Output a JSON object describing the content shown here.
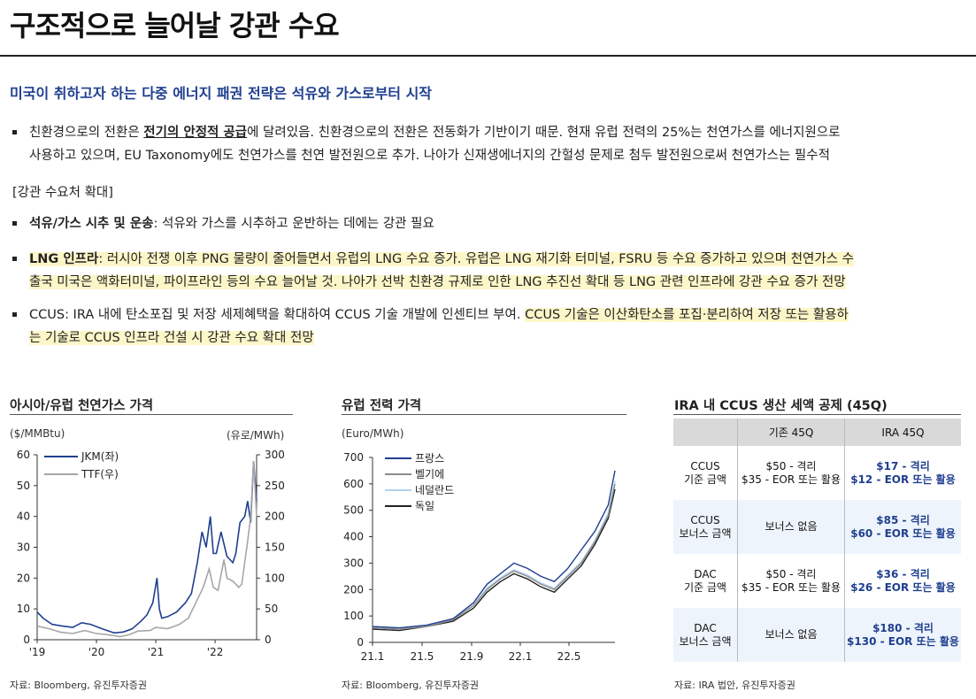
{
  "title": "구조적으로 늘어날 강관 수요",
  "subtitle": "미국이 취하고자 하는 다중 에너지 패권 전략은 석유와 가스로부터 시작",
  "para1": {
    "a": "친환경으로의 전환은 ",
    "b": "전기의 안정적 공급",
    "c": "에 달려있음. 친환경으로의 전환은 전동화가 기반이기 때문. 현재 유럽 전력의 25%는 천연가스를 에너지원으로",
    "d": "사용하고 있으며, EU Taxonomy에도 천연가스를 천연 발전원으로 추가. 나아가 신재생에너지의 간헐성 문제로 첨두 발전원으로써 천연가스는 필수적"
  },
  "section": "[강관 수요처 확대]",
  "b1": {
    "head": "석유/가스 시추 및 운송",
    "body": ": 석유와 가스를 시추하고 운반하는 데에는 강관 필요"
  },
  "b2": {
    "head": "LNG 인프라",
    "l1": ": 러시아 전쟁 이후 PNG 물량이 줄어들면서 유럽의 LNG 수요 증가. 유럽은 LNG 재기화 터미널, FSRU 등 수요 증가하고 있으며 천연가스 수",
    "l2": "출국 미국은 액화터미널, 파이프라인 등의 수요 늘어날 것. 나아가 선박 친환경 규제로 인한 LNG 추진선 확대 등 LNG 관련 인프라에 강관 수요 증가 전망"
  },
  "b3": {
    "a": "CCUS: IRA 내에 탄소포집 및 저장 세제혜택을 확대하여 CCUS 기술 개발에 인센티브 부여. ",
    "b": "CCUS 기술은 이산화탄소를 포집·분리하여 저장 또는 활용하",
    "c": "는 기술로 CCUS 인프라 건설 시 강관 수요 확대 전망"
  },
  "chart1": {
    "title": "아시아/유럽 천연가스 가격",
    "unit_left": "($/MMBtu)",
    "unit_right": "(유로/MWh)",
    "source": "자료: Bloomberg, 유진투자증권"
  },
  "chart2": {
    "title": "유럽 전력 가격",
    "unit": "(Euro/MWh)",
    "source": "자료: Bloomberg, 유진투자증권"
  },
  "table": {
    "title": "IRA 내 CCUS 생산 세액 공제 (45Q)",
    "headers": [
      "",
      "기존 45Q",
      "IRA 45Q"
    ],
    "rows": [
      {
        "label": [
          "CCUS",
          "기준 금액"
        ],
        "current": [
          "$50 - 격리",
          "$35 - EOR 또는 활용"
        ],
        "ira": [
          "$17 - 격리",
          "$12 - EOR 또는 활용"
        ]
      },
      {
        "label": [
          "CCUS",
          "보너스 금액"
        ],
        "current": [
          "보너스 없음"
        ],
        "ira": [
          "$85 - 격리",
          "$60 - EOR 또는 활용"
        ]
      },
      {
        "label": [
          "DAC",
          "기준 금액"
        ],
        "current": [
          "$50 - 격리",
          "$35 - EOR 또는 활용"
        ],
        "ira": [
          "$36 - 격리",
          "$26 - EOR 또는 활용"
        ]
      },
      {
        "label": [
          "DAC",
          "보너스 금액"
        ],
        "current": [
          "보너스 없음"
        ],
        "ira": [
          "$180 - 격리",
          "$130 - EOR 또는 활용"
        ]
      }
    ],
    "source": "자료: IRA 법안, 유진투자증권"
  },
  "chart_data": [
    {
      "type": "line",
      "title": "아시아/유럽 천연가스 가격",
      "x_ticks": [
        "'19",
        "'20",
        "'21",
        "'22"
      ],
      "x_range": [
        2019.0,
        2022.7
      ],
      "y_left": {
        "unit": "($/MMBtu)",
        "ticks": [
          0,
          10,
          20,
          30,
          40,
          50,
          60
        ],
        "range": [
          0,
          60
        ]
      },
      "y_right": {
        "unit": "(유로/MWh)",
        "ticks": [
          0,
          50,
          100,
          150,
          200,
          250,
          300
        ],
        "range": [
          0,
          300
        ]
      },
      "legend": "top-left",
      "colors": {
        "JKM(좌)": "#1f3f8f",
        "TTF(우)": "#a6a6a6"
      },
      "series": [
        {
          "name": "JKM(좌)",
          "axis": "left",
          "x": [
            2019.0,
            2019.1,
            2019.25,
            2019.4,
            2019.6,
            2019.75,
            2019.9,
            2020.1,
            2020.3,
            2020.45,
            2020.6,
            2020.75,
            2020.85,
            2020.95,
            2021.02,
            2021.06,
            2021.1,
            2021.2,
            2021.35,
            2021.5,
            2021.6,
            2021.7,
            2021.78,
            2021.85,
            2021.92,
            2021.97,
            2022.02,
            2022.1,
            2022.2,
            2022.3,
            2022.35,
            2022.42,
            2022.5,
            2022.55,
            2022.6,
            2022.65,
            2022.7
          ],
          "y": [
            9,
            7,
            5,
            4.5,
            4,
            5.5,
            5,
            3.5,
            2.2,
            2.5,
            3.5,
            6,
            8,
            12,
            20,
            10,
            7,
            7.5,
            9,
            12,
            15,
            25,
            35,
            30,
            40,
            28,
            28,
            35,
            27,
            25,
            28,
            38,
            40,
            45,
            38,
            58,
            45
          ]
        },
        {
          "name": "TTF(우)",
          "axis": "right",
          "x": [
            2019.0,
            2019.2,
            2019.4,
            2019.6,
            2019.8,
            2020.0,
            2020.2,
            2020.4,
            2020.55,
            2020.7,
            2020.9,
            2021.0,
            2021.2,
            2021.4,
            2021.55,
            2021.7,
            2021.8,
            2021.9,
            2021.97,
            2022.05,
            2022.15,
            2022.2,
            2022.3,
            2022.4,
            2022.45,
            2022.55,
            2022.6,
            2022.65,
            2022.7
          ],
          "y": [
            22,
            18,
            12,
            10,
            15,
            10,
            8,
            5,
            8,
            14,
            15,
            20,
            18,
            25,
            35,
            65,
            85,
            115,
            85,
            80,
            130,
            100,
            95,
            85,
            90,
            160,
            200,
            290,
            200
          ]
        }
      ]
    },
    {
      "type": "line",
      "title": "유럽 전력 가격",
      "x_ticks": [
        "21.1",
        "21.5",
        "21.9",
        "22.1",
        "22.5"
      ],
      "x_range": [
        21.1,
        22.9
      ],
      "y": {
        "unit": "(Euro/MWh)",
        "ticks": [
          0,
          100,
          200,
          300,
          400,
          500,
          600,
          700
        ],
        "range": [
          0,
          700
        ]
      },
      "legend": "top-left",
      "colors": {
        "프랑스": "#1f3f8f",
        "벨기에": "#8c8c8c",
        "네덜란드": "#b4d2f0",
        "독일": "#222222"
      },
      "series": [
        {
          "name": "프랑스",
          "x": [
            21.1,
            21.3,
            21.5,
            21.7,
            21.85,
            21.95,
            22.05,
            22.15,
            22.25,
            22.35,
            22.45,
            22.55,
            22.65,
            22.75,
            22.85,
            22.9
          ],
          "y": [
            60,
            55,
            65,
            90,
            150,
            220,
            260,
            300,
            280,
            250,
            230,
            280,
            350,
            420,
            520,
            650
          ]
        },
        {
          "name": "벨기에",
          "x": [
            21.1,
            21.3,
            21.5,
            21.7,
            21.85,
            21.95,
            22.05,
            22.15,
            22.25,
            22.35,
            22.45,
            22.55,
            22.65,
            22.75,
            22.85,
            22.9
          ],
          "y": [
            55,
            50,
            60,
            85,
            140,
            200,
            240,
            270,
            250,
            220,
            200,
            250,
            300,
            380,
            480,
            600
          ]
        },
        {
          "name": "네덜란드",
          "x": [
            21.1,
            21.3,
            21.5,
            21.7,
            21.85,
            21.95,
            22.05,
            22.15,
            22.25,
            22.35,
            22.45,
            22.55,
            22.65,
            22.75,
            22.85,
            22.9
          ],
          "y": [
            55,
            50,
            62,
            88,
            140,
            205,
            245,
            275,
            255,
            225,
            205,
            255,
            305,
            385,
            490,
            610
          ]
        },
        {
          "name": "독일",
          "x": [
            21.1,
            21.3,
            21.5,
            21.7,
            21.85,
            21.95,
            22.05,
            22.15,
            22.25,
            22.35,
            22.45,
            22.55,
            22.65,
            22.75,
            22.85,
            22.9
          ],
          "y": [
            50,
            45,
            60,
            80,
            130,
            190,
            230,
            260,
            240,
            210,
            190,
            240,
            290,
            370,
            470,
            580
          ]
        }
      ]
    }
  ]
}
